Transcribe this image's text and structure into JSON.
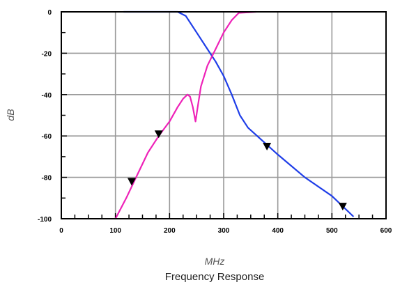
{
  "chart_data": {
    "type": "line",
    "title": "Frequency Response",
    "xlabel": "MHz",
    "ylabel": "dB",
    "xlim": [
      0,
      600
    ],
    "ylim": [
      -100,
      0
    ],
    "x_ticks": [
      0,
      100,
      200,
      300,
      400,
      500,
      600
    ],
    "x_tick_labels": [
      "0",
      "100",
      "200",
      "300",
      "400",
      "500",
      "600"
    ],
    "y_ticks": [
      0,
      -20,
      -40,
      -60,
      -80,
      -100
    ],
    "y_tick_labels": [
      "0",
      "-20",
      "-40",
      "-60",
      "-80",
      "-100"
    ],
    "grid": true,
    "colors": {
      "blue": "#1f3ee8",
      "magenta": "#ee22b8",
      "marker": "#000000"
    },
    "series": [
      {
        "color": "blue",
        "points": [
          [
            115,
            0
          ],
          [
            215,
            0
          ],
          [
            230,
            -2
          ],
          [
            250,
            -10
          ],
          [
            270,
            -18
          ],
          [
            285,
            -24
          ],
          [
            300,
            -31
          ],
          [
            315,
            -40
          ],
          [
            330,
            -50
          ],
          [
            345,
            -56
          ],
          [
            400,
            -69
          ],
          [
            450,
            -80
          ],
          [
            500,
            -89
          ],
          [
            540,
            -99
          ]
        ]
      },
      {
        "color": "magenta",
        "points": [
          [
            100,
            -100
          ],
          [
            120,
            -90
          ],
          [
            140,
            -79
          ],
          [
            160,
            -68
          ],
          [
            180,
            -60
          ],
          [
            200,
            -53
          ],
          [
            215,
            -46
          ],
          [
            225,
            -42
          ],
          [
            233,
            -40
          ],
          [
            238,
            -41
          ],
          [
            243,
            -46
          ],
          [
            248,
            -53
          ],
          [
            252,
            -46
          ],
          [
            258,
            -36
          ],
          [
            270,
            -26
          ],
          [
            285,
            -18
          ],
          [
            300,
            -10
          ],
          [
            315,
            -4
          ],
          [
            328,
            -0.5
          ],
          [
            360,
            0
          ]
        ]
      }
    ],
    "markers": [
      [
        130,
        -82
      ],
      [
        180,
        -59
      ],
      [
        380,
        -65
      ],
      [
        520,
        -94
      ]
    ]
  }
}
